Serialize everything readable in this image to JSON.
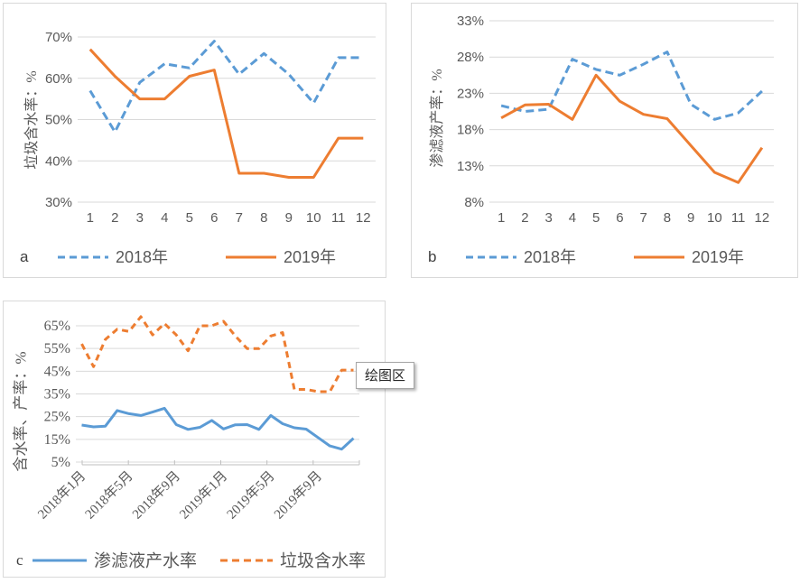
{
  "colors": {
    "blue": "#5B9BD5",
    "orange": "#ED7D31",
    "grid": "#D9D9D9",
    "axis_line": "#BFBFBF",
    "axis_text": "#595959",
    "letter_text": "#404040",
    "chart_border": "#D9D9D9",
    "tooltip_border": "#A6A6A6"
  },
  "tooltip": {
    "text": "绘图区"
  },
  "chart_data": [
    {
      "id": "a",
      "letter": "a",
      "type": "line",
      "ylabel": "垃圾含水率：%",
      "categories": [
        "1",
        "2",
        "3",
        "4",
        "5",
        "6",
        "7",
        "8",
        "9",
        "10",
        "11",
        "12"
      ],
      "ylim": [
        30,
        70
      ],
      "ytick_step": 10,
      "ytick_labels": [
        "70%",
        "60%",
        "50%",
        "40%",
        "30%"
      ],
      "grid": true,
      "legend_position": "bottom",
      "series": [
        {
          "name": "2018年",
          "color": "blue",
          "line": "dashed",
          "values": [
            57,
            47,
            59,
            63.5,
            62.5,
            69,
            61,
            66,
            61,
            54,
            65,
            65
          ]
        },
        {
          "name": "2019年",
          "color": "orange",
          "line": "solid",
          "values": [
            67,
            60.5,
            55,
            55,
            60.5,
            62,
            37,
            37,
            36,
            36,
            45.5,
            45.5
          ]
        }
      ]
    },
    {
      "id": "b",
      "letter": "b",
      "type": "line",
      "ylabel": "渗滤液产率：%",
      "categories": [
        "1",
        "2",
        "3",
        "4",
        "5",
        "6",
        "7",
        "8",
        "9",
        "10",
        "11",
        "12"
      ],
      "ylim": [
        8,
        33
      ],
      "ytick_step": 5,
      "ytick_labels": [
        "33%",
        "28%",
        "23%",
        "18%",
        "13%",
        "8%"
      ],
      "grid": true,
      "legend_position": "bottom",
      "series": [
        {
          "name": "2018年",
          "color": "blue",
          "line": "dashed",
          "values": [
            21.3,
            20.5,
            20.8,
            27.7,
            26.3,
            25.5,
            27,
            28.7,
            21.5,
            19.4,
            20.3,
            23.3
          ]
        },
        {
          "name": "2019年",
          "color": "orange",
          "line": "solid",
          "values": [
            19.6,
            21.4,
            21.5,
            19.4,
            25.5,
            21.9,
            20.1,
            19.5,
            15.8,
            12.1,
            10.7,
            15.5
          ]
        }
      ]
    },
    {
      "id": "c",
      "letter": "c",
      "type": "line",
      "ylabel": "含水率、产率：%",
      "n_points": 24,
      "xtick_interval": 4,
      "xtick_labels": [
        "2018年1月",
        "2018年5月",
        "2018年9月",
        "2019年1月",
        "2019年5月",
        "2019年9月"
      ],
      "ylim": [
        5,
        65
      ],
      "ytick_step": 10,
      "ytick_labels": [
        "65%",
        "55%",
        "45%",
        "35%",
        "25%",
        "15%",
        "5%"
      ],
      "grid": true,
      "legend_position": "bottom",
      "series": [
        {
          "name": "渗滤液产水率",
          "color": "blue",
          "line": "solid",
          "values": [
            21.3,
            20.5,
            20.8,
            27.7,
            26.3,
            25.5,
            27,
            28.7,
            21.5,
            19.4,
            20.3,
            23.3,
            19.6,
            21.4,
            21.5,
            19.4,
            25.5,
            21.9,
            20.1,
            19.5,
            15.8,
            12.1,
            10.7,
            15.5
          ]
        },
        {
          "name": "垃圾含水率",
          "color": "orange",
          "line": "dashed",
          "values": [
            57,
            47,
            59,
            63.5,
            62.5,
            69,
            61,
            66,
            61,
            54,
            65,
            65,
            67,
            60.5,
            55,
            55,
            60.5,
            62,
            37,
            37,
            36,
            36,
            45.5,
            45.5
          ]
        }
      ]
    }
  ]
}
